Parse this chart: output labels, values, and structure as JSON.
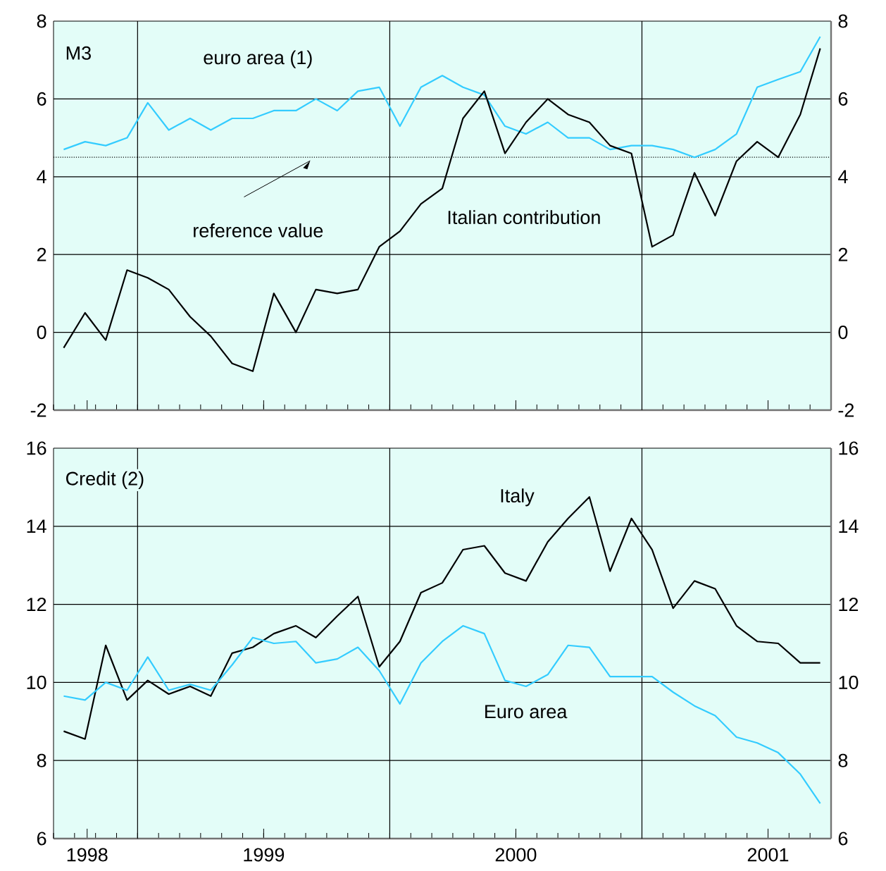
{
  "chart_data": [
    {
      "type": "line",
      "title": "M3",
      "xlim": [
        "1998-03-01",
        "2001-04-01"
      ],
      "xticks": [
        {
          "value": "1998-04-19",
          "label": null
        },
        {
          "value": "1999-01-01",
          "label": null
        },
        {
          "value": "2000-01-01",
          "label": null
        },
        {
          "value": "2001-01-01",
          "label": null
        }
      ],
      "tick_labels": "y",
      "x": [
        "1998-03-16",
        "1998-04-16",
        "1998-05-16",
        "1998-06-16",
        "1998-07-16",
        "1998-08-16",
        "1998-09-16",
        "1998-10-16",
        "1998-11-16",
        "1998-12-16",
        "1999-01-16",
        "1999-02-16",
        "1999-03-16",
        "1999-04-16",
        "1999-05-16",
        "1999-06-16",
        "1999-07-16",
        "1999-08-16",
        "1999-09-16",
        "1999-10-16",
        "1999-11-16",
        "1999-12-16",
        "2000-01-16",
        "2000-02-16",
        "2000-03-16",
        "2000-04-16",
        "2000-05-16",
        "2000-06-16",
        "2000-07-16",
        "2000-08-16",
        "2000-09-16",
        "2000-10-16",
        "2000-11-16",
        "2000-12-16",
        "2001-01-16",
        "2001-02-16",
        "2001-03-16"
      ],
      "ylim": [
        -2,
        8
      ],
      "yticks": [
        -2,
        0,
        2,
        4,
        6,
        8
      ],
      "y2lim": [
        -2,
        8
      ],
      "y2ticks": [
        -2,
        0,
        2,
        4,
        6,
        8
      ],
      "grid": "y",
      "series": [
        {
          "name": "euro area (1)",
          "color": "#33ccff",
          "values": [
            4.7,
            4.9,
            4.8,
            5.0,
            5.9,
            5.2,
            5.5,
            5.2,
            5.5,
            5.5,
            5.7,
            5.7,
            6.0,
            5.7,
            6.2,
            6.3,
            5.3,
            6.3,
            6.6,
            6.3,
            6.1,
            5.3,
            5.1,
            5.4,
            5.0,
            5.0,
            4.7,
            4.8,
            4.8,
            4.7,
            4.5,
            4.7,
            5.1,
            6.3,
            6.5,
            6.7,
            7.6
          ]
        },
        {
          "name": "Italian contribution",
          "color": "#000000",
          "values": [
            -0.4,
            0.5,
            -0.2,
            1.6,
            1.4,
            1.1,
            0.4,
            -0.1,
            -0.8,
            -1.0,
            1.0,
            0.0,
            1.1,
            1.0,
            1.1,
            2.2,
            2.6,
            3.3,
            3.7,
            5.5,
            6.2,
            4.6,
            5.4,
            6.0,
            5.6,
            5.4,
            4.8,
            4.6,
            2.2,
            2.5,
            4.1,
            3.0,
            4.4,
            4.9,
            4.5,
            5.6,
            7.3
          ]
        }
      ],
      "ref_lines": [
        {
          "axis": "y",
          "value": 4.5,
          "color": "#000000",
          "line_style": "dotted"
        },
        {
          "axis": "x",
          "value": "1998-07-01",
          "color": "#000000"
        },
        {
          "axis": "x",
          "value": "1999-07-01",
          "color": "#000000"
        },
        {
          "axis": "x",
          "value": "2000-07-01",
          "color": "#000000"
        }
      ],
      "annotations": [
        "reference value"
      ]
    },
    {
      "type": "line",
      "title": "Credit (2)",
      "xlim": [
        "1998-03-01",
        "2001-04-01"
      ],
      "xticks": [
        {
          "value": "1998-04-19",
          "label": "1998"
        },
        {
          "value": "1999-01-01",
          "label": "1999"
        },
        {
          "value": "2000-01-01",
          "label": "2000"
        },
        {
          "value": "2001-01-01",
          "label": "2001"
        }
      ],
      "x": [
        "1998-03-16",
        "1998-04-16",
        "1998-05-16",
        "1998-06-16",
        "1998-07-16",
        "1998-08-16",
        "1998-09-16",
        "1998-10-16",
        "1998-11-16",
        "1998-12-16",
        "1999-01-16",
        "1999-02-16",
        "1999-03-16",
        "1999-04-16",
        "1999-05-16",
        "1999-06-16",
        "1999-07-16",
        "1999-08-16",
        "1999-09-16",
        "1999-10-16",
        "1999-11-16",
        "1999-12-16",
        "2000-01-16",
        "2000-02-16",
        "2000-03-16",
        "2000-04-16",
        "2000-05-16",
        "2000-06-16",
        "2000-07-16",
        "2000-08-16",
        "2000-09-16",
        "2000-10-16",
        "2000-11-16",
        "2000-12-16",
        "2001-01-16",
        "2001-02-16",
        "2001-03-16"
      ],
      "ylim": [
        6,
        16
      ],
      "yticks": [
        6,
        8,
        10,
        12,
        14,
        16
      ],
      "y2lim": [
        6,
        16
      ],
      "y2ticks": [
        6,
        8,
        10,
        12,
        14,
        16
      ],
      "grid": "y",
      "series": [
        {
          "name": "Italy",
          "color": "#000000",
          "values": [
            8.75,
            8.55,
            10.95,
            9.55,
            10.05,
            9.7,
            9.9,
            9.65,
            10.75,
            10.9,
            11.25,
            11.45,
            11.15,
            11.7,
            12.2,
            10.4,
            11.05,
            12.3,
            12.55,
            13.4,
            13.5,
            12.8,
            12.6,
            13.6,
            14.2,
            14.75,
            12.85,
            14.2,
            13.4,
            11.9,
            12.6,
            12.4,
            11.45,
            11.05,
            11.0,
            10.5,
            10.5
          ]
        },
        {
          "name": "Euro area",
          "color": "#33ccff",
          "values": [
            9.65,
            9.55,
            10.0,
            9.8,
            10.65,
            9.8,
            9.95,
            9.8,
            10.45,
            11.15,
            11.0,
            11.05,
            10.5,
            10.6,
            10.9,
            10.3,
            9.45,
            10.5,
            11.05,
            11.45,
            11.25,
            10.05,
            9.9,
            10.2,
            10.95,
            10.9,
            10.15,
            10.15,
            10.15,
            9.75,
            9.4,
            9.15,
            8.6,
            8.45,
            8.2,
            7.65,
            6.9
          ]
        }
      ],
      "ref_lines": [
        {
          "axis": "x",
          "value": "1998-07-01",
          "color": "#000000"
        },
        {
          "axis": "x",
          "value": "1999-07-01",
          "color": "#000000"
        },
        {
          "axis": "x",
          "value": "2000-07-01",
          "color": "#000000"
        }
      ]
    }
  ]
}
